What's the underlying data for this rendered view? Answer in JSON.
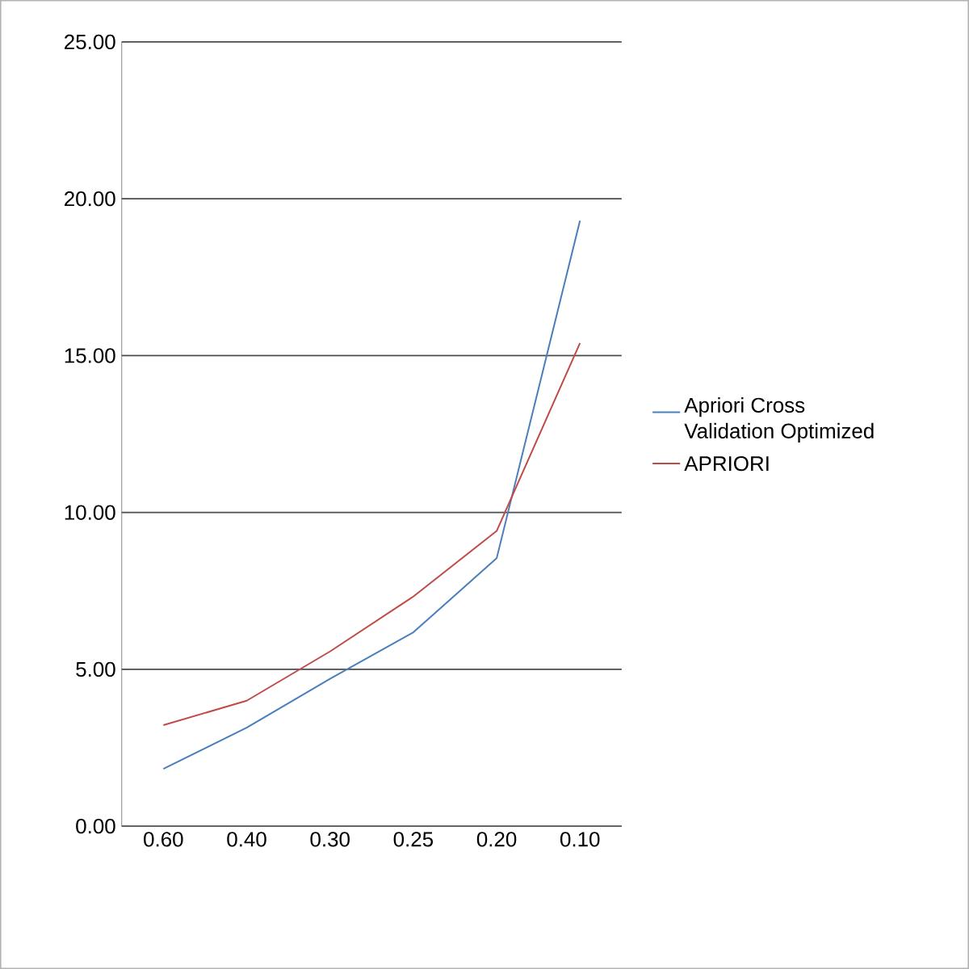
{
  "chart_data": {
    "type": "line",
    "categories": [
      "0.60",
      "0.40",
      "0.30",
      "0.25",
      "0.20",
      "0.10"
    ],
    "series": [
      {
        "name": "Apriori Cross Validation Optimized",
        "color": "#4a7ebb",
        "values": [
          1.83,
          3.14,
          4.7,
          6.18,
          8.54,
          19.3
        ]
      },
      {
        "name": "APRIORI",
        "color": "#be4b48",
        "values": [
          3.22,
          4.0,
          5.57,
          7.32,
          9.41,
          15.4
        ]
      }
    ],
    "ylim": [
      0,
      25
    ],
    "yticks": [
      {
        "value": 0,
        "label": "0.00"
      },
      {
        "value": 5,
        "label": "5.00"
      },
      {
        "value": 10,
        "label": "10.00"
      },
      {
        "value": 15,
        "label": "15.00"
      },
      {
        "value": 20,
        "label": "20.00"
      },
      {
        "value": 25,
        "label": "25.00"
      }
    ],
    "grid": "y",
    "legend": "right",
    "marker": "none",
    "line_style": "solid"
  }
}
